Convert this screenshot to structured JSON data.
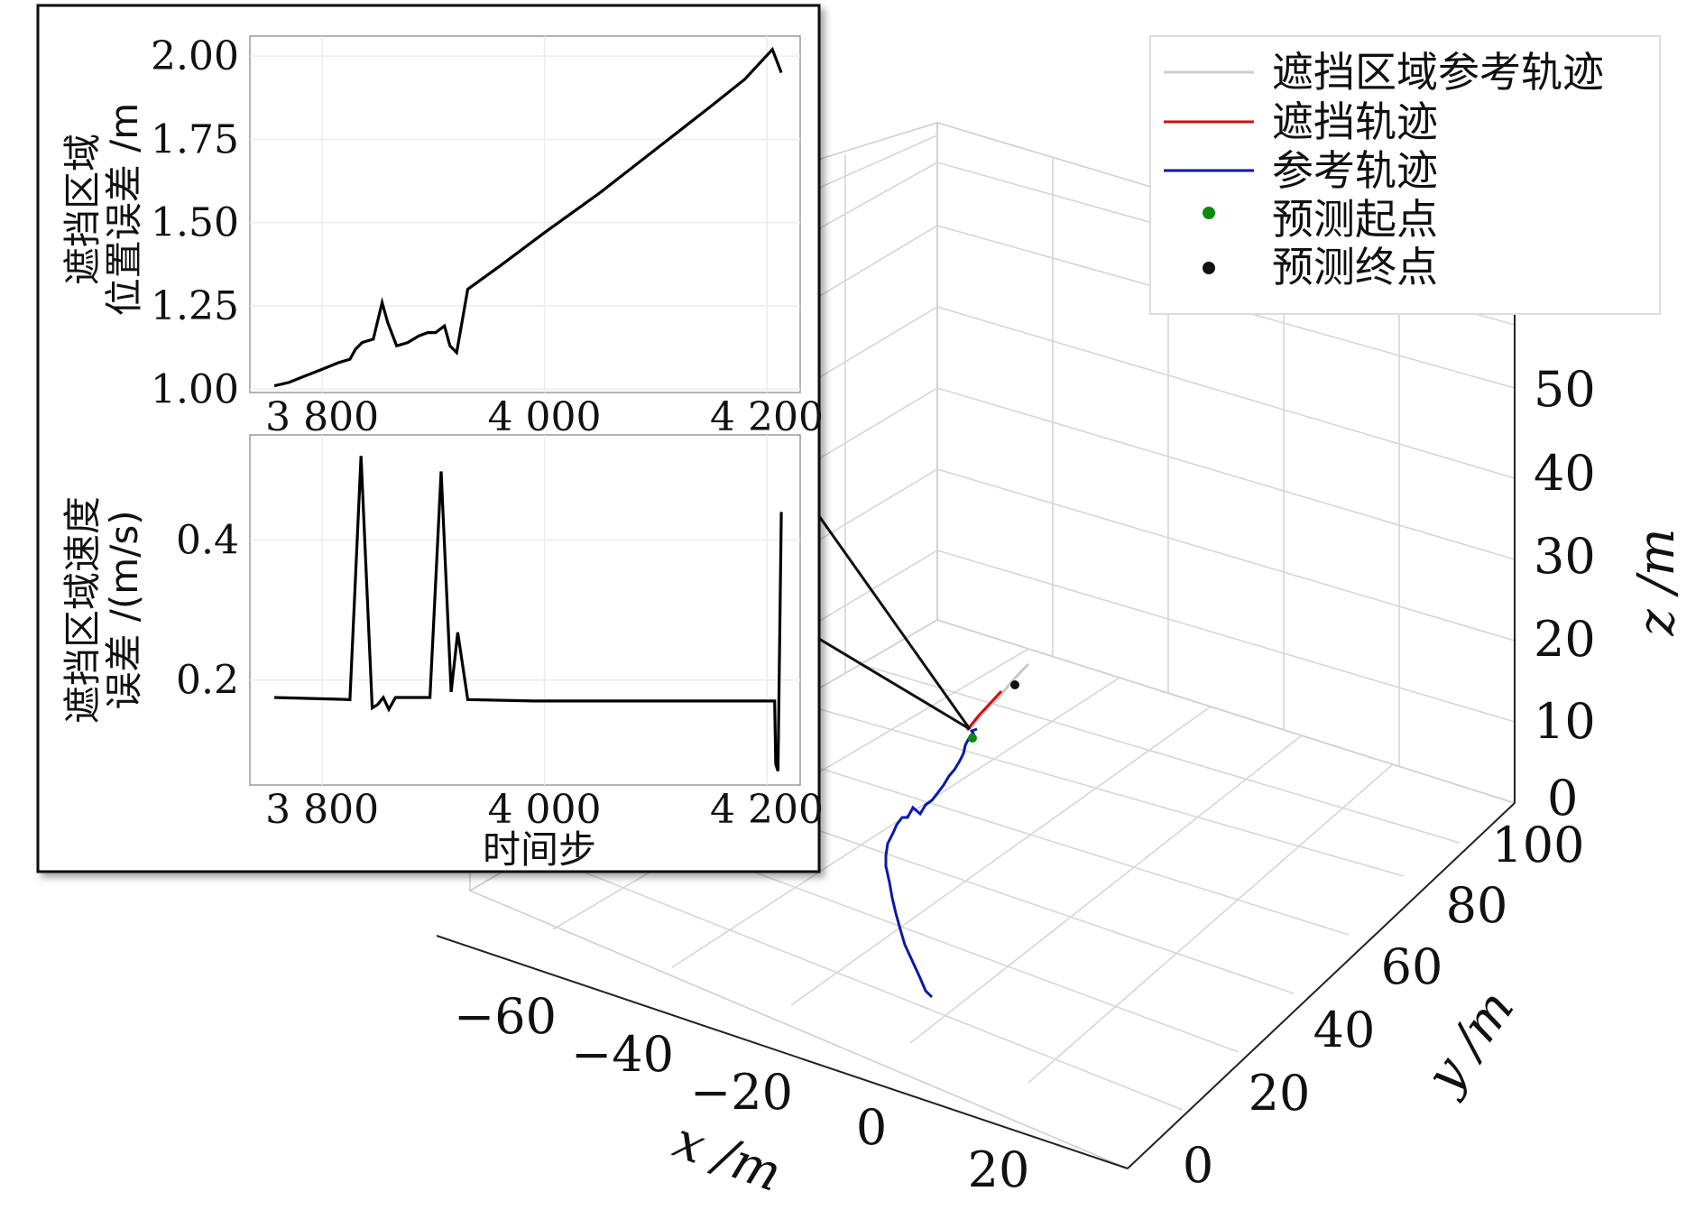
{
  "chart_data": [
    {
      "type": "line",
      "title": "",
      "xlabel": "",
      "ylabel_line1": "遮挡区域",
      "ylabel_line2": "位置误差 /m",
      "xlim": [
        3735,
        4230
      ],
      "ylim": [
        0.99,
        2.06
      ],
      "xticks": [
        3800,
        4000,
        4200
      ],
      "xtick_labels": [
        "3 800",
        "4 000",
        "4 200"
      ],
      "yticks": [
        1.0,
        1.25,
        1.5,
        1.75,
        2.0
      ],
      "ytick_labels": [
        "1.00",
        "1.25",
        "1.50",
        "1.75",
        "2.00"
      ],
      "grid": true,
      "series": [
        {
          "color": "#000000",
          "x": [
            3757,
            3770,
            3785,
            3800,
            3815,
            3825,
            3830,
            3836,
            3846,
            3854,
            3859,
            3867,
            3877,
            3887,
            3895,
            3902,
            3910,
            3915,
            3921,
            3931,
            3960,
            4000,
            4050,
            4100,
            4150,
            4180,
            4205,
            4213
          ],
          "y": [
            1.01,
            1.02,
            1.04,
            1.06,
            1.08,
            1.09,
            1.12,
            1.14,
            1.15,
            1.26,
            1.2,
            1.13,
            1.14,
            1.16,
            1.17,
            1.17,
            1.19,
            1.13,
            1.11,
            1.3,
            1.37,
            1.47,
            1.59,
            1.72,
            1.85,
            1.93,
            2.02,
            1.95
          ]
        }
      ]
    },
    {
      "type": "line",
      "title": "",
      "xlabel": "时间步",
      "ylabel_line1": "遮挡区域速度",
      "ylabel_line2": "误差 /(m/s)",
      "xlim": [
        3735,
        4230
      ],
      "ylim": [
        0.05,
        0.55
      ],
      "xticks": [
        3800,
        4000,
        4200
      ],
      "xtick_labels": [
        "3 800",
        "4 000",
        "4 200"
      ],
      "yticks": [
        0.2,
        0.4
      ],
      "ytick_labels": [
        "0.2",
        "0.4"
      ],
      "grid": true,
      "series": [
        {
          "color": "#000000",
          "x": [
            3757,
            3825,
            3835,
            3845,
            3850,
            3855,
            3860,
            3866,
            3872,
            3897,
            3907,
            3916,
            3922,
            3931,
            3990,
            4100,
            4207,
            4208,
            4210,
            4213
          ],
          "y": [
            0.175,
            0.172,
            0.52,
            0.16,
            0.165,
            0.175,
            0.158,
            0.175,
            0.175,
            0.175,
            0.498,
            0.183,
            0.268,
            0.172,
            0.17,
            0.17,
            0.17,
            0.08,
            0.07,
            0.44
          ]
        }
      ]
    },
    {
      "type": "line",
      "title": "",
      "xlabel": "x /m",
      "ylabel": "y /m",
      "zlabel": "z /m",
      "xticks": [
        -60,
        -40,
        -20,
        0,
        20
      ],
      "xtick_labels": [
        "−60",
        "−40",
        "−20",
        "0",
        "20"
      ],
      "yticks": [
        0,
        20,
        40,
        60,
        80,
        100
      ],
      "ytick_labels": [
        "0",
        "20",
        "40",
        "60",
        "80",
        "100"
      ],
      "zticks": [
        0,
        10,
        20,
        30,
        40,
        50
      ],
      "ztick_labels": [
        "0",
        "10",
        "20",
        "30",
        "40",
        "50"
      ],
      "grid": true,
      "legend_position": "top-right",
      "legend": [
        {
          "label": "遮挡区域参考轨迹",
          "marker": "line",
          "color": "#cfcfcf"
        },
        {
          "label": "遮挡轨迹",
          "marker": "line",
          "color": "#cc1111"
        },
        {
          "label": "参考轨迹",
          "marker": "line",
          "color": "#0a1aa8"
        },
        {
          "label": "预测起点",
          "marker": "dot",
          "color": "#0e8a0e"
        },
        {
          "label": "预测终点",
          "marker": "dot",
          "color": "#111111"
        }
      ]
    }
  ]
}
